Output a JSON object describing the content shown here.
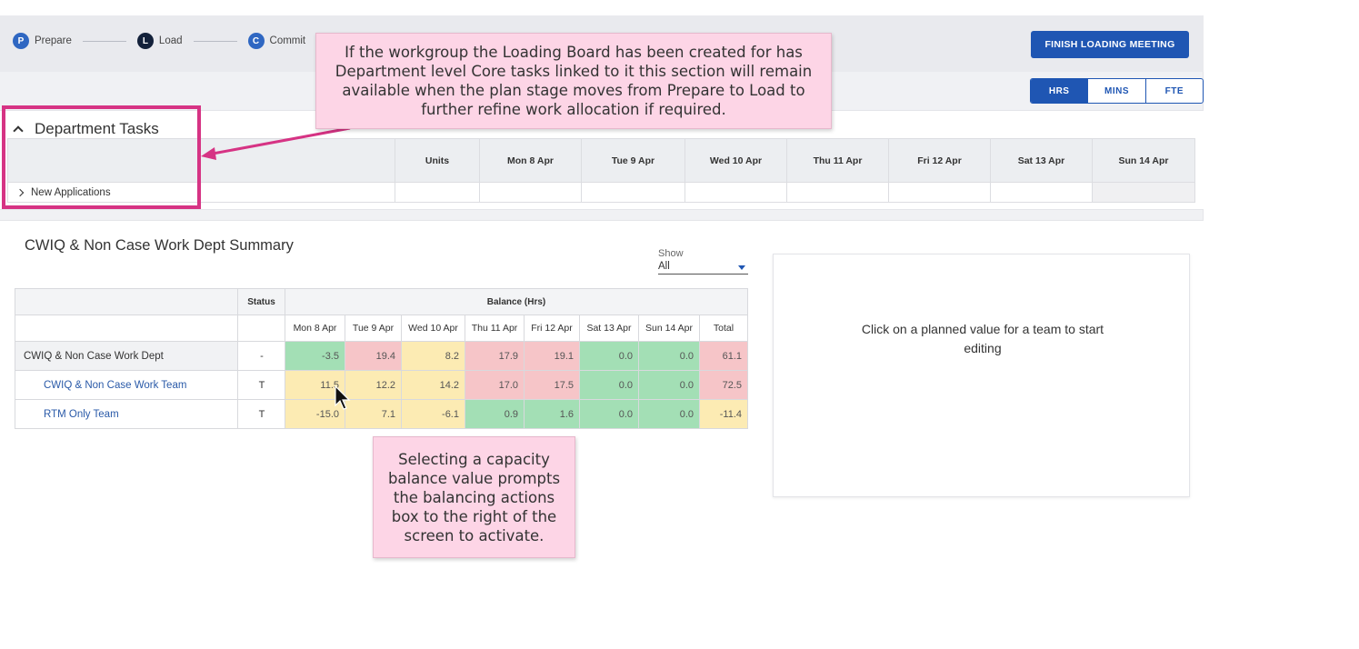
{
  "stepper": {
    "steps": [
      {
        "letter": "P",
        "label": "Prepare"
      },
      {
        "letter": "L",
        "label": "Load"
      },
      {
        "letter": "C",
        "label": "Commit"
      }
    ]
  },
  "header": {
    "finish_button": "FINISH LOADING MEETING",
    "unit_options": [
      "HRS",
      "MINS",
      "FTE"
    ],
    "unit_selected": "HRS"
  },
  "department_tasks": {
    "title": "Department Tasks",
    "columns": [
      "Units",
      "Mon 8 Apr",
      "Tue 9 Apr",
      "Wed 10 Apr",
      "Thu 11 Apr",
      "Fri 12 Apr",
      "Sat 13 Apr",
      "Sun 14 Apr"
    ],
    "rows": [
      {
        "label": "New Applications"
      }
    ]
  },
  "summary": {
    "title": "CWIQ & Non Case Work Dept Summary",
    "show_label": "Show",
    "show_value": "All",
    "status_header": "Status",
    "balance_header": "Balance (Hrs)",
    "days": [
      "Mon 8 Apr",
      "Tue 9 Apr",
      "Wed 10 Apr",
      "Thu 11 Apr",
      "Fri 12 Apr",
      "Sat 13 Apr",
      "Sun 14 Apr",
      "Total"
    ],
    "rows": [
      {
        "name": "CWIQ & Non Case Work Dept",
        "status": "-",
        "values": [
          "-3.5",
          "19.4",
          "8.2",
          "17.9",
          "19.1",
          "0.0",
          "0.0",
          "61.1"
        ],
        "colors": [
          "g",
          "r",
          "y",
          "r",
          "r",
          "g",
          "g",
          "r"
        ]
      },
      {
        "name": "CWIQ & Non Case Work Team",
        "status": "T",
        "values": [
          "11.5",
          "12.2",
          "14.2",
          "17.0",
          "17.5",
          "0.0",
          "0.0",
          "72.5"
        ],
        "colors": [
          "y",
          "y",
          "y",
          "r",
          "r",
          "g",
          "g",
          "r"
        ]
      },
      {
        "name": "RTM Only Team",
        "status": "T",
        "values": [
          "-15.0",
          "7.1",
          "-6.1",
          "0.9",
          "1.6",
          "0.0",
          "0.0",
          "-11.4"
        ],
        "colors": [
          "y",
          "y",
          "y",
          "g",
          "g",
          "g",
          "g",
          "y"
        ]
      }
    ]
  },
  "edit_panel": {
    "message": "Click on a planned value for a team to start editing"
  },
  "callouts": {
    "top": "If the workgroup the Loading Board has been created for has Department level Core tasks linked to it this section will remain available when the plan stage moves from Prepare to Load to further refine work allocation if required.",
    "bottom": "Selecting a capacity balance value prompts the balancing actions box to the right of the screen to activate."
  },
  "colors": {
    "accent": "#1f56b3",
    "callout_bg": "#fdd5e6",
    "highlight": "#d63384",
    "green": "#a3dfb5",
    "red": "#f6c5c8",
    "yellow": "#fcebb3"
  }
}
